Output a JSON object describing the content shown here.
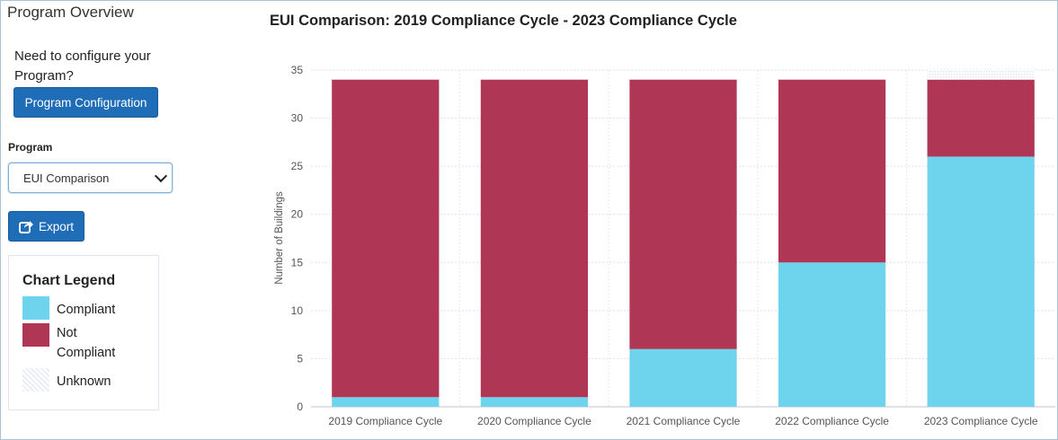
{
  "sidebar": {
    "title": "Program Overview",
    "config_prompt": "Need to configure your Program?",
    "config_button": "Program Configuration",
    "program_label": "Program",
    "program_selected": "EUI Comparison",
    "export_button": "Export",
    "export_icon": "share-export-icon",
    "legend": {
      "title": "Chart Legend",
      "items": [
        {
          "label": "Compliant",
          "color": "#6ed3ed"
        },
        {
          "label": "Not Compliant",
          "color": "#b03656"
        },
        {
          "label": "Unknown",
          "color": "#e6e8f5"
        }
      ]
    }
  },
  "chart_data": {
    "type": "bar",
    "stacked": true,
    "title": "EUI Comparison: 2019 Compliance Cycle - 2023 Compliance Cycle",
    "ylabel": "Number of Buildings",
    "xlabel": "",
    "ylim": [
      0,
      35
    ],
    "yticks": [
      0,
      5,
      10,
      15,
      20,
      25,
      30,
      35
    ],
    "grid": true,
    "categories": [
      "2019 Compliance Cycle",
      "2020 Compliance Cycle",
      "2021 Compliance Cycle",
      "2022 Compliance Cycle",
      "2023 Compliance Cycle"
    ],
    "series": [
      {
        "name": "Compliant",
        "color": "#6ed3ed",
        "values": [
          1,
          1,
          6,
          15,
          26
        ]
      },
      {
        "name": "Not Compliant",
        "color": "#b03656",
        "values": [
          33,
          33,
          28,
          19,
          8
        ]
      },
      {
        "name": "Unknown",
        "color": "#e6e8f5",
        "values": [
          0,
          0,
          0,
          0,
          1
        ]
      }
    ]
  }
}
